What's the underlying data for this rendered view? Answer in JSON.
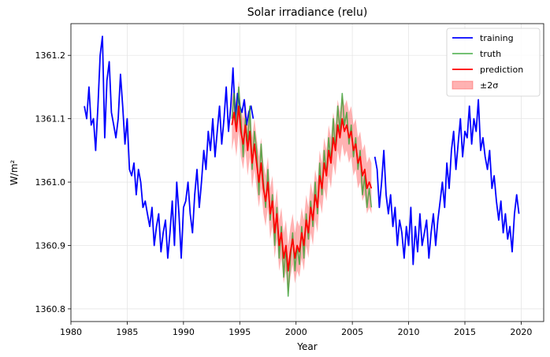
{
  "chart_data": {
    "type": "line",
    "title": "Solar irradiance (relu)",
    "xlabel": "Year",
    "ylabel": "W/m²",
    "xlim": [
      1980,
      2022
    ],
    "ylim": [
      1360.78,
      1361.25
    ],
    "grid": true,
    "legend_placement": "top-right",
    "x_ticks": [
      1980,
      1985,
      1990,
      1995,
      2000,
      2005,
      2010,
      2015,
      2020
    ],
    "x_tick_labels": [
      "1980",
      "1985",
      "1990",
      "1995",
      "2000",
      "2005",
      "2010",
      "2015",
      "2020"
    ],
    "y_ticks": [
      1360.8,
      1360.9,
      1361.0,
      1361.1,
      1361.2
    ],
    "y_tick_labels": [
      "1360.8",
      "1360.9",
      "1361.0",
      "1361.1",
      "1361.2"
    ],
    "series": [
      {
        "name": "training",
        "color": "#0000ff",
        "segments": [
          {
            "x_start": 1981.2,
            "step": 0.2,
            "values": [
              1361.12,
              1361.1,
              1361.15,
              1361.09,
              1361.1,
              1361.05,
              1361.12,
              1361.2,
              1361.23,
              1361.07,
              1361.16,
              1361.19,
              1361.11,
              1361.09,
              1361.07,
              1361.1,
              1361.17,
              1361.12,
              1361.06,
              1361.1,
              1361.02,
              1361.01,
              1361.03,
              1360.98,
              1361.02,
              1361.0,
              1360.96,
              1360.97,
              1360.95,
              1360.93,
              1360.96,
              1360.9,
              1360.93,
              1360.95,
              1360.89,
              1360.92,
              1360.94,
              1360.88,
              1360.92,
              1360.97,
              1360.9,
              1361.0,
              1360.95,
              1360.88,
              1360.96,
              1360.97,
              1361.0,
              1360.95,
              1360.92,
              1360.98,
              1361.02,
              1360.96,
              1361.0,
              1361.05,
              1361.02,
              1361.08,
              1361.05,
              1361.1,
              1361.04,
              1361.08,
              1361.12,
              1361.06,
              1361.1,
              1361.15,
              1361.08,
              1361.12,
              1361.18,
              1361.1,
              1361.14,
              1361.12,
              1361.11,
              1361.13,
              1361.09,
              1361.11,
              1361.12,
              1361.1
            ]
          },
          {
            "x_start": 2007.0,
            "step": 0.2,
            "values": [
              1361.04,
              1361.02,
              1360.96,
              1361.0,
              1361.05,
              1360.98,
              1360.95,
              1360.98,
              1360.93,
              1360.96,
              1360.9,
              1360.94,
              1360.92,
              1360.88,
              1360.93,
              1360.9,
              1360.96,
              1360.87,
              1360.93,
              1360.89,
              1360.95,
              1360.9,
              1360.92,
              1360.94,
              1360.88,
              1360.92,
              1360.95,
              1360.9,
              1360.94,
              1360.97,
              1361.0,
              1360.96,
              1361.03,
              1360.99,
              1361.05,
              1361.08,
              1361.02,
              1361.06,
              1361.1,
              1361.04,
              1361.08,
              1361.07,
              1361.12,
              1361.06,
              1361.1,
              1361.08,
              1361.13,
              1361.05,
              1361.07,
              1361.04,
              1361.02,
              1361.05,
              1360.99,
              1361.01,
              1360.97,
              1360.94,
              1360.97,
              1360.92,
              1360.95,
              1360.91,
              1360.93,
              1360.89,
              1360.95,
              1360.98,
              1360.95
            ]
          }
        ]
      },
      {
        "name": "truth",
        "color": "#2ca02c",
        "segments": [
          {
            "x_start": 1994.3,
            "step": 0.2,
            "values": [
              1361.1,
              1361.14,
              1361.08,
              1361.15,
              1361.1,
              1361.04,
              1361.1,
              1361.06,
              1361.12,
              1361.02,
              1361.08,
              1361.05,
              1360.98,
              1361.06,
              1361.0,
              1360.96,
              1361.02,
              1360.94,
              1360.98,
              1360.9,
              1360.96,
              1360.88,
              1360.93,
              1360.85,
              1360.9,
              1360.82,
              1360.88,
              1360.92,
              1360.86,
              1360.9,
              1360.87,
              1360.93,
              1360.88,
              1360.95,
              1360.91,
              1360.97,
              1360.93,
              1361.0,
              1360.95,
              1361.03,
              1360.98,
              1361.05,
              1361.01,
              1361.07,
              1361.03,
              1361.1,
              1361.05,
              1361.12,
              1361.08,
              1361.14,
              1361.09,
              1361.11,
              1361.06,
              1361.09,
              1361.04,
              1361.07,
              1361.02,
              1361.05,
              1360.98,
              1361.01,
              1360.96,
              1360.99,
              1360.96
            ]
          }
        ]
      },
      {
        "name": "prediction",
        "color": "#ff0000",
        "segments": [
          {
            "x_start": 1994.3,
            "step": 0.2,
            "values": [
              1361.09,
              1361.11,
              1361.08,
              1361.12,
              1361.08,
              1361.06,
              1361.09,
              1361.05,
              1361.08,
              1361.03,
              1361.06,
              1361.03,
              1361.0,
              1361.03,
              1360.99,
              1360.97,
              1361.0,
              1360.95,
              1360.97,
              1360.92,
              1360.95,
              1360.9,
              1360.92,
              1360.88,
              1360.9,
              1360.86,
              1360.89,
              1360.91,
              1360.88,
              1360.9,
              1360.89,
              1360.92,
              1360.9,
              1360.94,
              1360.92,
              1360.96,
              1360.94,
              1360.98,
              1360.96,
              1361.01,
              1360.99,
              1361.03,
              1361.01,
              1361.05,
              1361.03,
              1361.07,
              1361.05,
              1361.09,
              1361.07,
              1361.1,
              1361.08,
              1361.09,
              1361.07,
              1361.08,
              1361.05,
              1361.06,
              1361.03,
              1361.04,
              1361.01,
              1361.02,
              1360.99,
              1361.0,
              1360.99
            ]
          }
        ]
      },
      {
        "name": "±2σ",
        "kind": "band",
        "color": "#ff0000",
        "opacity": 0.3,
        "center": "prediction",
        "half_width": 0.04
      }
    ]
  }
}
